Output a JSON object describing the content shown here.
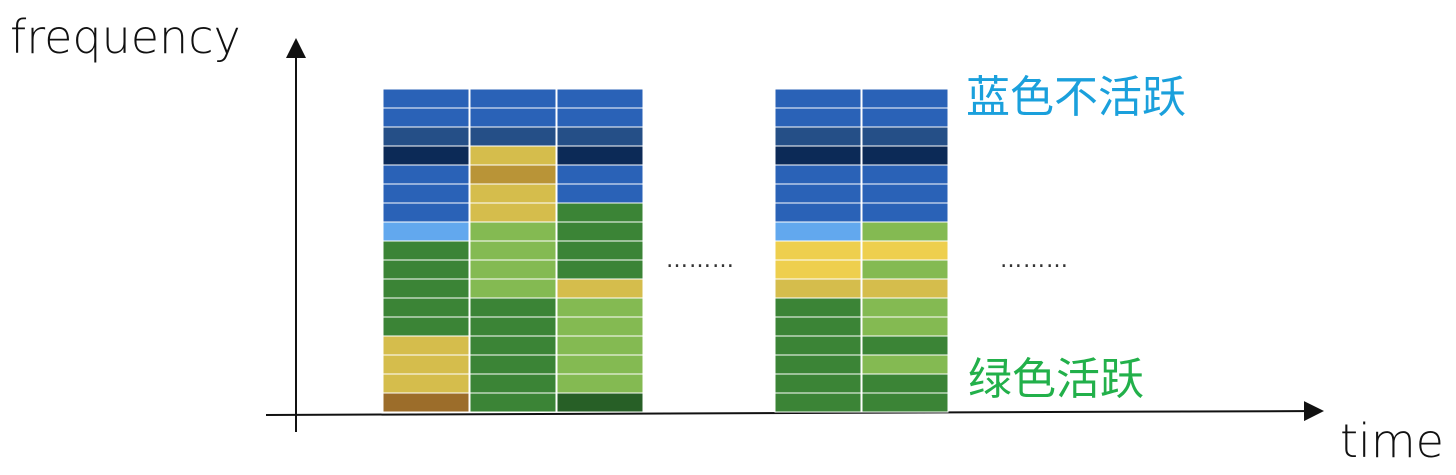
{
  "labels": {
    "y_axis": "frequency",
    "x_axis": "time",
    "legend_top": "蓝色不活跃",
    "legend_bottom": "绿色活跃",
    "ellipsis_1": "………",
    "ellipsis_2": "………"
  },
  "colors": {
    "legend_top": "#1aa0dc",
    "legend_bottom": "#22b04a",
    "blue": "#2a62b7",
    "darkblue": "#254f87",
    "navy": "#0c2a57",
    "lightblue": "#62a8ee",
    "green": "#3b8436",
    "darkgreen": "#275f26",
    "lightgreen": "#84ba52",
    "yellow": "#d5bd4c",
    "brightyellow": "#eecf4e",
    "goldbrown": "#b99437",
    "brown": "#9c6d2a"
  },
  "columns": [
    [
      "blue",
      "blue",
      "darkblue",
      "navy",
      "blue",
      "blue",
      "blue",
      "lightblue",
      "green",
      "green",
      "green",
      "green",
      "green",
      "yellow",
      "yellow",
      "yellow",
      "brown"
    ],
    [
      "blue",
      "blue",
      "darkblue",
      "yellow",
      "goldbrown",
      "yellow",
      "yellow",
      "lightgreen",
      "lightgreen",
      "lightgreen",
      "lightgreen",
      "green",
      "green",
      "green",
      "green",
      "green",
      "green"
    ],
    [
      "blue",
      "blue",
      "darkblue",
      "navy",
      "blue",
      "blue",
      "green",
      "green",
      "green",
      "green",
      "yellow",
      "lightgreen",
      "lightgreen",
      "lightgreen",
      "lightgreen",
      "lightgreen",
      "darkgreen"
    ],
    [
      "blue",
      "blue",
      "darkblue",
      "navy",
      "blue",
      "blue",
      "blue",
      "lightblue",
      "brightyellow",
      "brightyellow",
      "yellow",
      "green",
      "green",
      "green",
      "green",
      "green",
      "green"
    ],
    [
      "blue",
      "blue",
      "darkblue",
      "navy",
      "blue",
      "blue",
      "blue",
      "lightgreen",
      "brightyellow",
      "lightgreen",
      "yellow",
      "lightgreen",
      "lightgreen",
      "green",
      "lightgreen",
      "green",
      "green"
    ]
  ]
}
